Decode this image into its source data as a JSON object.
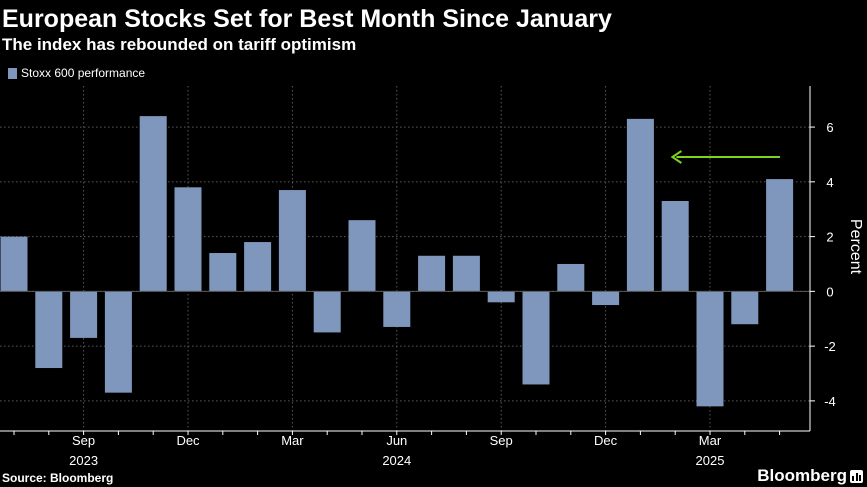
{
  "chart_data": {
    "type": "bar",
    "title": "European Stocks Set for Best Month Since January",
    "subtitle": "The index has rebounded on tariff optimism",
    "ylabel": "Percent",
    "legend": {
      "label": "Stoxx 600 performance",
      "placement": "top-left"
    },
    "ylim": [
      -5.1,
      7.5
    ],
    "yticks": [
      -4,
      -2,
      0,
      2,
      4,
      6
    ],
    "ytick_labels": [
      "-4",
      "-2",
      "0",
      "2",
      "4",
      "6"
    ],
    "grid": true,
    "categories": [
      "2023-07",
      "2023-08",
      "2023-09",
      "2023-10",
      "2023-11",
      "2023-12",
      "2024-01",
      "2024-02",
      "2024-03",
      "2024-04",
      "2024-05",
      "2024-06",
      "2024-07",
      "2024-08",
      "2024-09",
      "2024-10",
      "2024-11",
      "2024-12",
      "2025-01",
      "2025-02",
      "2025-03",
      "2025-04",
      "2025-05"
    ],
    "series": [
      {
        "name": "Stoxx 600 performance",
        "values": [
          2.0,
          -2.8,
          -1.7,
          -3.7,
          6.4,
          3.8,
          1.4,
          1.8,
          3.7,
          -1.5,
          2.6,
          -1.3,
          1.3,
          1.3,
          -0.4,
          -3.4,
          1.0,
          -0.5,
          6.3,
          3.3,
          -4.2,
          -1.2,
          4.1
        ]
      }
    ],
    "x_month_labels": [
      {
        "category": "2023-09",
        "label": "Sep"
      },
      {
        "category": "2023-12",
        "label": "Dec"
      },
      {
        "category": "2024-03",
        "label": "Mar"
      },
      {
        "category": "2024-06",
        "label": "Jun"
      },
      {
        "category": "2024-09",
        "label": "Sep"
      },
      {
        "category": "2024-12",
        "label": "Dec"
      },
      {
        "category": "2025-03",
        "label": "Mar"
      }
    ],
    "x_year_labels": [
      {
        "category": "2023-09",
        "label": "2023"
      },
      {
        "category": "2024-06",
        "label": "2024"
      },
      {
        "category": "2025-03",
        "label": "2025"
      }
    ],
    "annotation": {
      "type": "arrow",
      "color": "#7ed321",
      "points_to": "2025-01"
    },
    "colors": {
      "bar": "#7f97bd",
      "grid": "#5a5a5a",
      "axis": "#ffffff",
      "background": "#000000"
    }
  },
  "footer": {
    "source": "Source: Bloomberg",
    "brand": "Bloomberg"
  }
}
